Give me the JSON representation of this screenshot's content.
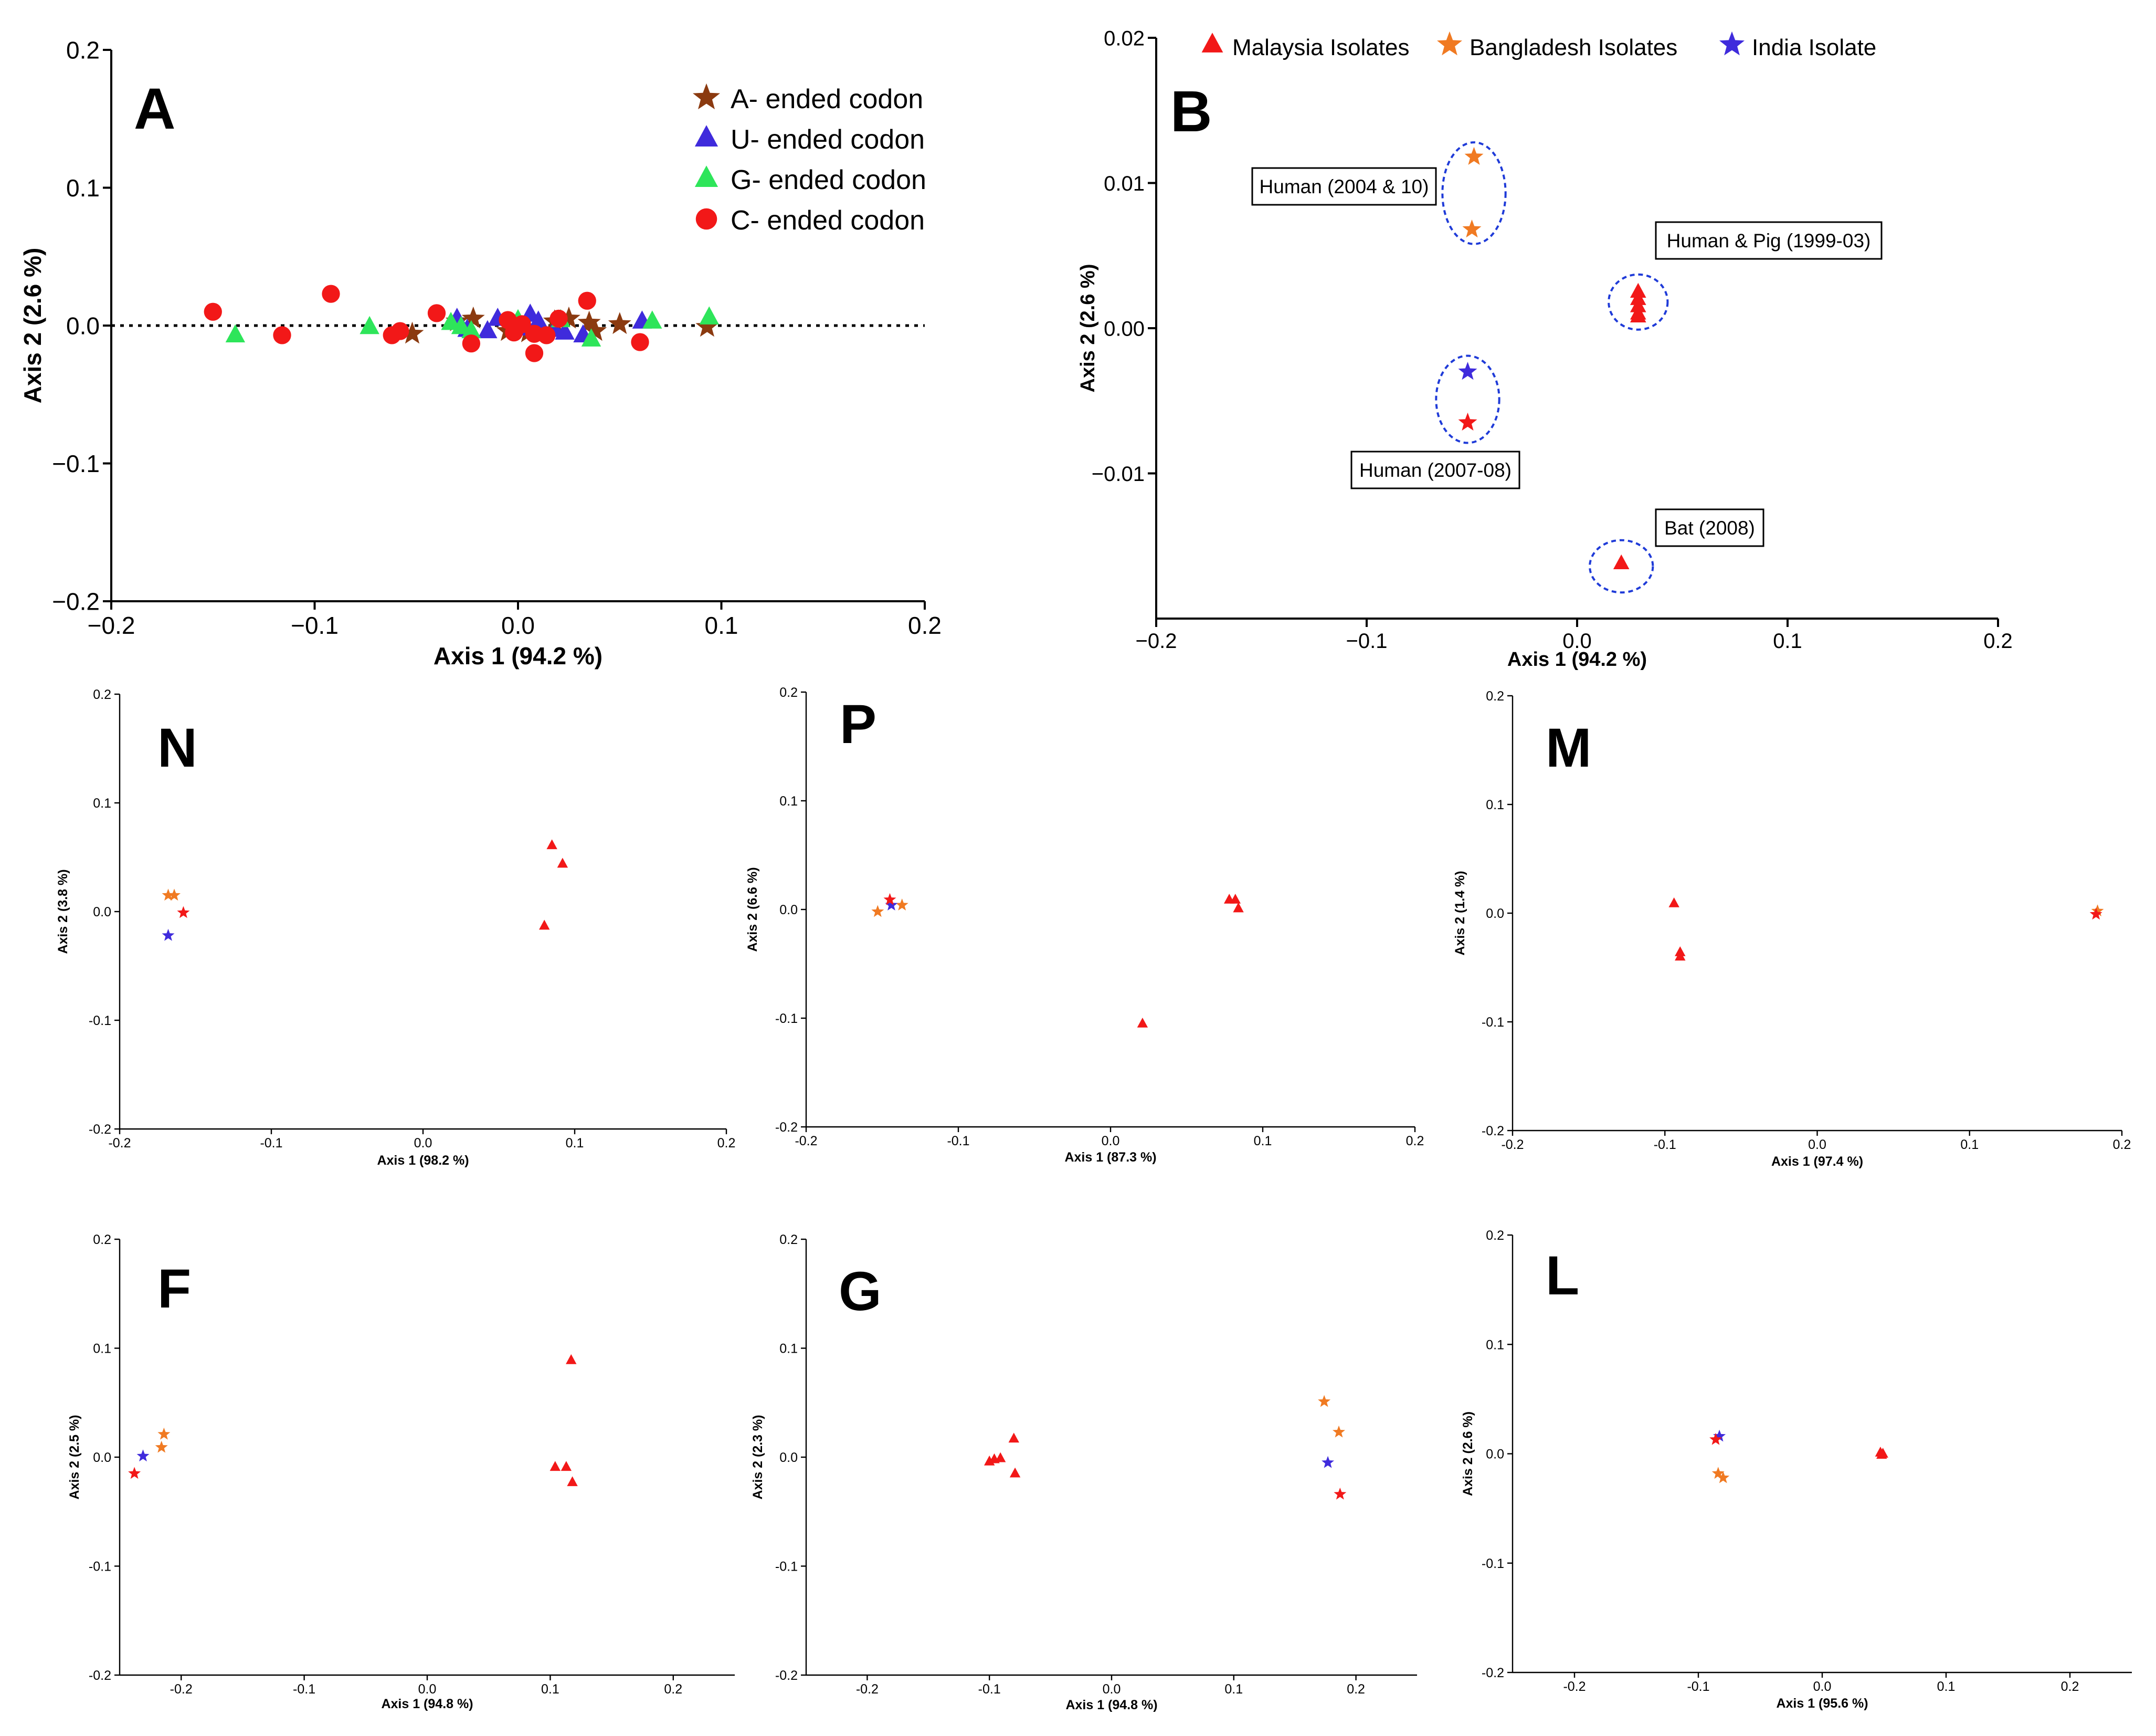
{
  "chart_data": [
    {
      "id": "A",
      "type": "scatter",
      "panel_label": "A",
      "xlabel": "Axis 1 (94.2 %)",
      "ylabel": "Axis 2 (2.6 %)",
      "xlim": [
        -0.2,
        0.2
      ],
      "ylim": [
        -0.2,
        0.2
      ],
      "xticks": [
        -0.2,
        -0.1,
        0.0,
        0.1,
        0.2
      ],
      "yticks": [
        -0.2,
        -0.1,
        0.0,
        0.1,
        0.2
      ],
      "xtick_labels": [
        "−0.2",
        "−0.1",
        "0.0",
        "0.1",
        "0.2"
      ],
      "ytick_labels": [
        "−0.2",
        "−0.1",
        "0.0",
        "0.1",
        "0.2"
      ],
      "zero_line": true,
      "legend": {
        "position": "top-right",
        "entries": [
          {
            "label": "A- ended codon",
            "marker": "star",
            "color": "#8b3a10"
          },
          {
            "label": "U- ended codon",
            "marker": "triangle",
            "color": "#3f2bdc"
          },
          {
            "label": "G- ended codon",
            "marker": "triangle",
            "color": "#2ee55a"
          },
          {
            "label": "C- ended codon",
            "marker": "circle",
            "color": "#f21818"
          }
        ]
      },
      "series": [
        {
          "name": "A- ended codon",
          "marker": "star",
          "color": "#8b3a10",
          "points": [
            [
              -0.052,
              -0.006
            ],
            [
              -0.03,
              0.003
            ],
            [
              -0.022,
              0.005
            ],
            [
              -0.005,
              -0.004
            ],
            [
              0.005,
              -0.005
            ],
            [
              0.018,
              0.003
            ],
            [
              0.025,
              0.005
            ],
            [
              0.035,
              0.002
            ],
            [
              0.038,
              -0.004
            ],
            [
              0.05,
              0.001
            ],
            [
              0.093,
              -0.001
            ]
          ]
        },
        {
          "name": "U- ended codon",
          "marker": "triangle",
          "color": "#3f2bdc",
          "points": [
            [
              -0.03,
              0.005
            ],
            [
              -0.025,
              -0.003
            ],
            [
              -0.015,
              -0.004
            ],
            [
              -0.01,
              0.005
            ],
            [
              0.0,
              -0.002
            ],
            [
              0.006,
              0.008
            ],
            [
              0.01,
              0.003
            ],
            [
              0.018,
              -0.003
            ],
            [
              0.023,
              -0.005
            ],
            [
              0.032,
              -0.007
            ],
            [
              0.061,
              0.003
            ]
          ]
        },
        {
          "name": "G- ended codon",
          "marker": "triangle",
          "color": "#2ee55a",
          "points": [
            [
              -0.139,
              -0.007
            ],
            [
              -0.073,
              -0.001
            ],
            [
              -0.033,
              0.002
            ],
            [
              -0.028,
              -0.001
            ],
            [
              -0.023,
              -0.004
            ],
            [
              0.0,
              0.004
            ],
            [
              0.021,
              0.004
            ],
            [
              0.036,
              -0.01
            ],
            [
              0.066,
              0.003
            ],
            [
              0.094,
              0.006
            ]
          ]
        },
        {
          "name": "C- ended codon",
          "marker": "circle",
          "color": "#f21818",
          "points": [
            [
              -0.15,
              0.01
            ],
            [
              -0.116,
              -0.007
            ],
            [
              -0.092,
              0.023
            ],
            [
              -0.062,
              -0.007
            ],
            [
              -0.058,
              -0.004
            ],
            [
              -0.04,
              0.009
            ],
            [
              -0.023,
              -0.013
            ],
            [
              -0.005,
              0.004
            ],
            [
              -0.002,
              -0.005
            ],
            [
              0.002,
              0.001
            ],
            [
              0.008,
              -0.006
            ],
            [
              0.014,
              -0.007
            ],
            [
              0.02,
              0.005
            ],
            [
              0.034,
              0.018
            ],
            [
              0.008,
              -0.02
            ],
            [
              0.06,
              -0.012
            ]
          ]
        }
      ]
    },
    {
      "id": "B",
      "type": "scatter",
      "panel_label": "B",
      "xlabel": "Axis 1 (94.2 %)",
      "ylabel": "Axis 2 (2.6 %)",
      "xlim": [
        -0.2,
        0.2
      ],
      "ylim": [
        -0.02,
        0.02
      ],
      "xticks": [
        -0.2,
        -0.1,
        0.0,
        0.1,
        0.2
      ],
      "yticks": [
        -0.01,
        0.0,
        0.01,
        0.02
      ],
      "xtick_labels": [
        "−0.2",
        "−0.1",
        "0.0",
        "0.1",
        "0.2"
      ],
      "ytick_labels": [
        "−0.01",
        "0.00",
        "0.01",
        "0.02"
      ],
      "legend": {
        "position": "top",
        "entries": [
          {
            "label": "Malaysia Isolates",
            "marker": "triangle",
            "color": "#f21818"
          },
          {
            "label": "Bangladesh Isolates",
            "marker": "star",
            "color": "#f07a22"
          },
          {
            "label": "India Isolate",
            "marker": "star",
            "color": "#3f2bdc"
          }
        ]
      },
      "series": [
        {
          "name": "Malaysia Isolates",
          "marker": "triangle",
          "color": "#f21818",
          "points": [
            [
              0.029,
              0.0025
            ],
            [
              0.029,
              0.002
            ],
            [
              0.029,
              0.0015
            ],
            [
              0.029,
              0.001
            ],
            [
              0.029,
              0.0008
            ],
            [
              0.021,
              -0.0162
            ]
          ]
        },
        {
          "name": "Bangladesh Isolates",
          "marker": "star",
          "color": "#f07a22",
          "points": [
            [
              -0.049,
              0.0118
            ],
            [
              -0.05,
              0.0068
            ]
          ]
        },
        {
          "name": "India Isolate",
          "marker": "star",
          "color": "#3f2bdc",
          "points": [
            [
              -0.052,
              -0.003
            ]
          ]
        },
        {
          "name": "Red star",
          "marker": "star",
          "color": "#f21818",
          "points": [
            [
              -0.052,
              -0.0065
            ]
          ]
        }
      ],
      "clusters": [
        {
          "label": "Human (2004 & 10)",
          "cx": -0.049,
          "cy": 0.0093,
          "rx": 0.015,
          "ry": 0.0035
        },
        {
          "label": "Human & Pig (1999-03)",
          "cx": 0.029,
          "cy": 0.0018,
          "rx": 0.014,
          "ry": 0.0019
        },
        {
          "label": "Human (2007-08)",
          "cx": -0.052,
          "cy": -0.0049,
          "rx": 0.015,
          "ry": 0.003
        },
        {
          "label": "Bat (2008)",
          "cx": 0.021,
          "cy": -0.0164,
          "rx": 0.015,
          "ry": 0.0018
        }
      ]
    },
    {
      "id": "N",
      "type": "scatter",
      "panel_label": "N",
      "xlabel": "Axis 1 (98.2 %)",
      "ylabel": "Axis 2 (3.8 %)",
      "xlim": [
        -0.2,
        0.2
      ],
      "ylim": [
        -0.2,
        0.2
      ],
      "xticks": [
        -0.2,
        -0.1,
        0.0,
        0.1,
        0.2
      ],
      "yticks": [
        -0.2,
        -0.1,
        0.0,
        0.1,
        0.2
      ],
      "xtick_labels": [
        "-0.2",
        "-0.1",
        "0.0",
        "0.1",
        "0.2"
      ],
      "ytick_labels": [
        "-0.2",
        "-0.1",
        "0.0",
        "0.1",
        "0.2"
      ],
      "series": [
        {
          "name": "Malaysia Isolates",
          "marker": "triangle",
          "color": "#f21818",
          "points": [
            [
              0.085,
              0.061
            ],
            [
              0.092,
              0.044
            ],
            [
              0.08,
              -0.013
            ]
          ]
        },
        {
          "name": "Bangladesh Isolates",
          "marker": "star",
          "color": "#f07a22",
          "points": [
            [
              -0.168,
              0.015
            ],
            [
              -0.164,
              0.015
            ]
          ]
        },
        {
          "name": "India Isolate",
          "marker": "star",
          "color": "#3f2bdc",
          "points": [
            [
              -0.168,
              -0.022
            ]
          ]
        },
        {
          "name": "Red star",
          "marker": "star",
          "color": "#f21818",
          "points": [
            [
              -0.158,
              -0.001
            ]
          ]
        }
      ]
    },
    {
      "id": "P",
      "type": "scatter",
      "panel_label": "P",
      "xlabel": "Axis 1 (87.3 %)",
      "ylabel": "Axis 2 (6.6 %)",
      "xlim": [
        -0.2,
        0.2
      ],
      "ylim": [
        -0.2,
        0.2
      ],
      "xticks": [
        -0.2,
        -0.1,
        0.0,
        0.1,
        0.2
      ],
      "yticks": [
        -0.2,
        -0.1,
        0.0,
        0.1,
        0.2
      ],
      "xtick_labels": [
        "-0.2",
        "-0.1",
        "0.0",
        "0.1",
        "0.2"
      ],
      "ytick_labels": [
        "-0.2",
        "-0.1",
        "0.0",
        "0.1",
        "0.2"
      ],
      "series": [
        {
          "name": "Malaysia Isolates",
          "marker": "triangle",
          "color": "#f21818",
          "points": [
            [
              0.078,
              0.009
            ],
            [
              0.082,
              0.009
            ],
            [
              0.084,
              0.001
            ],
            [
              0.021,
              -0.105
            ]
          ]
        },
        {
          "name": "Bangladesh Isolates",
          "marker": "star",
          "color": "#f07a22",
          "points": [
            [
              -0.153,
              -0.002
            ],
            [
              -0.137,
              0.004
            ]
          ]
        },
        {
          "name": "India Isolate",
          "marker": "star",
          "color": "#3f2bdc",
          "points": [
            [
              -0.144,
              0.004
            ]
          ]
        },
        {
          "name": "Red star",
          "marker": "star",
          "color": "#f21818",
          "points": [
            [
              -0.145,
              0.009
            ]
          ]
        }
      ]
    },
    {
      "id": "M",
      "type": "scatter",
      "panel_label": "M",
      "xlabel": "Axis 1 (97.4 %)",
      "ylabel": "Axis 2 (1.4 %)",
      "xlim": [
        -0.2,
        0.2
      ],
      "ylim": [
        -0.2,
        0.2
      ],
      "xticks": [
        -0.2,
        -0.1,
        0.0,
        0.1,
        0.2
      ],
      "yticks": [
        -0.2,
        -0.1,
        0.0,
        0.1,
        0.2
      ],
      "xtick_labels": [
        "-0.2",
        "-0.1",
        "0.0",
        "0.1",
        "0.2"
      ],
      "ytick_labels": [
        "-0.2",
        "-0.1",
        "0.0",
        "0.1",
        "0.2"
      ],
      "series": [
        {
          "name": "Malaysia Isolates",
          "marker": "triangle",
          "color": "#f21818",
          "points": [
            [
              -0.094,
              0.009
            ],
            [
              -0.09,
              -0.036
            ],
            [
              -0.09,
              -0.04
            ]
          ]
        },
        {
          "name": "Bangladesh Isolates",
          "marker": "star",
          "color": "#f07a22",
          "points": [
            [
              0.184,
              0.002
            ]
          ]
        },
        {
          "name": "Red star",
          "marker": "star",
          "color": "#f21818",
          "points": [
            [
              0.183,
              -0.001
            ]
          ]
        }
      ]
    },
    {
      "id": "F",
      "type": "scatter",
      "panel_label": "F",
      "xlabel": "Axis 1 (94.8 %)",
      "ylabel": "Axis 2 (2.5 %)",
      "xlim": [
        -0.25,
        0.25
      ],
      "ylim": [
        -0.2,
        0.2
      ],
      "xticks": [
        -0.2,
        -0.1,
        0.0,
        0.1,
        0.2
      ],
      "yticks": [
        -0.2,
        -0.1,
        0.0,
        0.1,
        0.2
      ],
      "xtick_labels": [
        "-0.2",
        "-0.1",
        "0.0",
        "0.1",
        "0.2"
      ],
      "ytick_labels": [
        "-0.2",
        "-0.1",
        "0.0",
        "0.1",
        "0.2"
      ],
      "series": [
        {
          "name": "Malaysia Isolates",
          "marker": "triangle",
          "color": "#f21818",
          "points": [
            [
              0.117,
              0.089
            ],
            [
              0.104,
              -0.009
            ],
            [
              0.113,
              -0.009
            ],
            [
              0.118,
              -0.023
            ]
          ]
        },
        {
          "name": "Bangladesh Isolates",
          "marker": "star",
          "color": "#f07a22",
          "points": [
            [
              -0.214,
              0.021
            ],
            [
              -0.216,
              0.009
            ]
          ]
        },
        {
          "name": "India Isolate",
          "marker": "star",
          "color": "#3f2bdc",
          "points": [
            [
              -0.231,
              0.001
            ]
          ]
        },
        {
          "name": "Red star",
          "marker": "star",
          "color": "#f21818",
          "points": [
            [
              -0.238,
              -0.015
            ]
          ]
        }
      ]
    },
    {
      "id": "G",
      "type": "scatter",
      "panel_label": "G",
      "xlabel": "Axis 1 (94.8 %)",
      "ylabel": "Axis 2 (2.3 %)",
      "xlim": [
        -0.25,
        0.25
      ],
      "ylim": [
        -0.2,
        0.2
      ],
      "xticks": [
        -0.2,
        -0.1,
        0.0,
        0.1,
        0.2
      ],
      "yticks": [
        -0.2,
        -0.1,
        0.0,
        0.1,
        0.2
      ],
      "xtick_labels": [
        "-0.2",
        "-0.1",
        "0.0",
        "0.1",
        "0.2"
      ],
      "ytick_labels": [
        "-0.2",
        "-0.1",
        "0.0",
        "0.1",
        "0.2"
      ],
      "series": [
        {
          "name": "Malaysia Isolates",
          "marker": "triangle",
          "color": "#f21818",
          "points": [
            [
              -0.08,
              0.017
            ],
            [
              -0.079,
              -0.015
            ],
            [
              -0.1,
              -0.004
            ],
            [
              -0.096,
              -0.002
            ],
            [
              -0.091,
              -0.001
            ]
          ]
        },
        {
          "name": "Bangladesh Isolates",
          "marker": "star",
          "color": "#f07a22",
          "points": [
            [
              0.174,
              0.051
            ],
            [
              0.186,
              0.023
            ]
          ]
        },
        {
          "name": "India Isolate",
          "marker": "star",
          "color": "#3f2bdc",
          "points": [
            [
              0.177,
              -0.005
            ]
          ]
        },
        {
          "name": "Red star",
          "marker": "star",
          "color": "#f21818",
          "points": [
            [
              0.187,
              -0.034
            ]
          ]
        }
      ]
    },
    {
      "id": "L",
      "type": "scatter",
      "panel_label": "L",
      "xlabel": "Axis 1 (95.6 %)",
      "ylabel": "Axis 2 (2.6 %)",
      "xlim": [
        -0.25,
        0.25
      ],
      "ylim": [
        -0.2,
        0.2
      ],
      "xticks": [
        -0.2,
        -0.1,
        0.0,
        0.1,
        0.2
      ],
      "yticks": [
        -0.2,
        -0.1,
        0.0,
        0.1,
        0.2
      ],
      "xtick_labels": [
        "-0.2",
        "-0.1",
        "0.0",
        "0.1",
        "0.2"
      ],
      "ytick_labels": [
        "-0.2",
        "-0.1",
        "0.0",
        "0.1",
        "0.2"
      ],
      "series": [
        {
          "name": "Malaysia Isolates",
          "marker": "triangle",
          "color": "#f21818",
          "points": [
            [
              0.047,
              0.001
            ],
            [
              0.048,
              -0.001
            ],
            [
              0.049,
              0.0
            ]
          ]
        },
        {
          "name": "Bangladesh Isolates",
          "marker": "star",
          "color": "#f07a22",
          "points": [
            [
              -0.084,
              -0.018
            ],
            [
              -0.08,
              -0.022
            ]
          ]
        },
        {
          "name": "India Isolate",
          "marker": "star",
          "color": "#3f2bdc",
          "points": [
            [
              -0.083,
              0.016
            ]
          ]
        },
        {
          "name": "Red star",
          "marker": "star",
          "color": "#f21818",
          "points": [
            [
              -0.086,
              0.013
            ]
          ]
        }
      ]
    }
  ]
}
